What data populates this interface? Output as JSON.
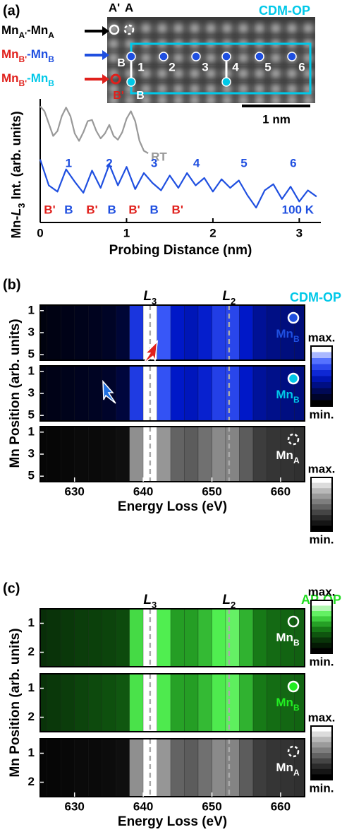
{
  "chart_data": [
    {
      "type": "line",
      "panel": "(a)",
      "title": "CDM-OP",
      "title_color": "#00c8e8",
      "image": {
        "columns": [
          "A'",
          "A"
        ],
        "scale_bar": "1 nm",
        "sites": [
          "1",
          "2",
          "3",
          "4",
          "5",
          "6"
        ],
        "site_marks": [
          "B",
          "B'",
          "B"
        ],
        "rows": [
          {
            "parts": [
              "Mn",
              "A'",
              "-Mn",
              "A"
            ],
            "colors": [
              "#000000",
              "#000000"
            ],
            "arrow": "#000000"
          },
          {
            "parts": [
              "Mn",
              "B'",
              "-Mn",
              "B"
            ],
            "colors": [
              "#e0201c",
              "#1f4fe0"
            ],
            "arrow": "#1f4fe0"
          },
          {
            "parts": [
              "Mn",
              "B'",
              "-Mn",
              "B"
            ],
            "colors": [
              "#e0201c",
              "#00c8e8"
            ],
            "arrow": "#e0201c"
          }
        ]
      },
      "x_label": "Probing Distance (nm)",
      "y_label": [
        "Mn-",
        "L",
        "3",
        " Int. (arb. units)"
      ],
      "xlim": [
        0,
        3.25
      ],
      "xticks": [
        0,
        1,
        2,
        3
      ],
      "ylim": [
        0,
        10
      ],
      "series": [
        {
          "name": "RT",
          "color": "#999999",
          "x": [
            0,
            0.05,
            0.1,
            0.15,
            0.2,
            0.25,
            0.3,
            0.35,
            0.4,
            0.45,
            0.5,
            0.55,
            0.6,
            0.65,
            0.7,
            0.75,
            0.8,
            0.85,
            0.9,
            0.95,
            1.0,
            1.05,
            1.1,
            1.15,
            1.2,
            1.25
          ],
          "values": [
            9.4,
            9.0,
            8.0,
            7.0,
            7.4,
            8.6,
            9.3,
            8.6,
            7.2,
            6.6,
            7.3,
            8.2,
            8.3,
            7.4,
            6.8,
            7.2,
            7.9,
            7.0,
            6.7,
            7.3,
            8.4,
            9.0,
            8.2,
            6.6,
            5.8,
            5.6
          ]
        },
        {
          "name": "100 K",
          "color": "#1f4fe0",
          "x": [
            0,
            0.1,
            0.2,
            0.3,
            0.4,
            0.5,
            0.6,
            0.7,
            0.8,
            0.9,
            1.0,
            1.1,
            1.2,
            1.3,
            1.4,
            1.5,
            1.6,
            1.7,
            1.8,
            1.9,
            2.0,
            2.1,
            2.2,
            2.3,
            2.4,
            2.5,
            2.6,
            2.7,
            2.8,
            2.9,
            3.0,
            3.1,
            3.2
          ],
          "values": [
            5.1,
            3.0,
            2.5,
            4.3,
            3.3,
            2.4,
            4.2,
            2.8,
            4.7,
            3.0,
            4.5,
            2.7,
            4.0,
            3.2,
            2.6,
            3.8,
            2.8,
            4.0,
            3.0,
            3.6,
            2.5,
            3.5,
            2.8,
            3.4,
            2.2,
            1.2,
            2.6,
            3.1,
            1.9,
            2.9,
            1.7,
            2.6,
            2.1
          ]
        }
      ],
      "peak_labels": [
        {
          "text": "1",
          "x": 0.33
        },
        {
          "text": "2",
          "x": 0.8
        },
        {
          "text": "3",
          "x": 1.32
        },
        {
          "text": "4",
          "x": 1.81
        },
        {
          "text": "5",
          "x": 2.36
        },
        {
          "text": "6",
          "x": 2.93
        }
      ],
      "site_labels": [
        {
          "text": "B'",
          "x": 0.11,
          "color": "#e0201c"
        },
        {
          "text": "B",
          "x": 0.33,
          "color": "#1f4fe0"
        },
        {
          "text": "B'",
          "x": 0.6,
          "color": "#e0201c"
        },
        {
          "text": "B",
          "x": 0.83,
          "color": "#1f4fe0"
        },
        {
          "text": "B'",
          "x": 1.09,
          "color": "#e0201c"
        },
        {
          "text": "B",
          "x": 1.32,
          "color": "#1f4fe0"
        },
        {
          "text": "B'",
          "x": 1.59,
          "color": "#e0201c"
        }
      ]
    },
    {
      "type": "heatmap",
      "panel": "(b)",
      "title": "CDM-OP",
      "title_color": "#00c8e8",
      "edges": [
        {
          "label": [
            "L",
            "3"
          ],
          "x": 641
        },
        {
          "label": [
            "L",
            "2"
          ],
          "x": 652.5
        }
      ],
      "x_label": "Energy Loss (eV)",
      "y_label": "Mn Position (arb. units)",
      "xlim": [
        625,
        663.5
      ],
      "xticks": [
        630,
        640,
        650,
        660
      ],
      "ylim": [
        0.5,
        5.5
      ],
      "yticks": [
        1,
        3,
        5
      ],
      "energy": [
        625,
        627,
        629,
        631,
        633,
        635,
        637,
        639,
        641,
        643,
        645,
        647,
        649,
        651,
        653,
        655,
        657,
        659,
        661,
        663
      ],
      "colorbars": [
        {
          "max": "max.",
          "min": "min.",
          "colormap": [
            "#000000",
            "#000a60",
            "#0018c8",
            "#4060ff",
            "#ffffff"
          ]
        },
        {
          "max": "max.",
          "min": "min.",
          "colormap": [
            "#000000",
            "#303030",
            "#707070",
            "#b0b0b0",
            "#ffffff"
          ]
        }
      ],
      "maps": [
        {
          "label": [
            "Mn",
            "B"
          ],
          "label_color": "#1f4fe0",
          "marker_fill": "#1f4fe0",
          "marker_dashed": false,
          "colorbar": 0,
          "intensity": [
            0.04,
            0.05,
            0.06,
            0.07,
            0.08,
            0.1,
            0.14,
            0.6,
            1.0,
            0.72,
            0.5,
            0.46,
            0.52,
            0.63,
            0.66,
            0.5,
            0.38,
            0.34,
            0.32,
            0.31
          ]
        },
        {
          "label": [
            "Mn",
            "B"
          ],
          "label_color": "#00c8e8",
          "marker_fill": "#00c8e8",
          "marker_dashed": false,
          "colorbar": 0,
          "intensity": [
            0.05,
            0.06,
            0.07,
            0.08,
            0.09,
            0.11,
            0.16,
            0.62,
            1.0,
            0.7,
            0.5,
            0.47,
            0.53,
            0.64,
            0.66,
            0.5,
            0.39,
            0.35,
            0.33,
            0.32
          ]
        },
        {
          "label": [
            "Mn",
            "A"
          ],
          "label_color": "#ffffff",
          "marker_fill": "none",
          "marker_dashed": true,
          "colorbar": 1,
          "intensity": [
            0.03,
            0.03,
            0.04,
            0.05,
            0.05,
            0.06,
            0.08,
            0.62,
            1.0,
            0.65,
            0.45,
            0.42,
            0.5,
            0.6,
            0.58,
            0.42,
            0.3,
            0.27,
            0.26,
            0.25
          ]
        }
      ]
    },
    {
      "type": "heatmap",
      "panel": "(c)",
      "title": "AP-OP",
      "title_color": "#22dd22",
      "edges": [
        {
          "label": [
            "L",
            "3"
          ],
          "x": 641
        },
        {
          "label": [
            "L",
            "2"
          ],
          "x": 652.5
        }
      ],
      "x_label": "Energy Loss (eV)",
      "y_label": "Mn Position (arb. units)",
      "xlim": [
        625,
        663.5
      ],
      "xticks": [
        630,
        640,
        650,
        660
      ],
      "ylim": [
        0.5,
        2.5
      ],
      "yticks": [
        1,
        2
      ],
      "energy": [
        625,
        627,
        629,
        631,
        633,
        635,
        637,
        639,
        641,
        643,
        645,
        647,
        649,
        651,
        653,
        655,
        657,
        659,
        661,
        663
      ],
      "colorbars": [
        {
          "max": "max.",
          "min": "min.",
          "colormap": [
            "#000000",
            "#0a3a0a",
            "#1a8a1a",
            "#50ee50",
            "#ffffff"
          ]
        },
        {
          "max": "max.",
          "min": "min.",
          "colormap": [
            "#000000",
            "#303030",
            "#707070",
            "#b0b0b0",
            "#ffffff"
          ]
        }
      ],
      "maps": [
        {
          "label": [
            "Mn",
            "B"
          ],
          "label_color": "#ffffff",
          "marker_fill": "none",
          "marker_dashed": false,
          "colorbar": 0,
          "intensity": [
            0.2,
            0.22,
            0.24,
            0.26,
            0.27,
            0.28,
            0.3,
            0.7,
            1.0,
            0.75,
            0.55,
            0.55,
            0.62,
            0.75,
            0.78,
            0.6,
            0.45,
            0.4,
            0.38,
            0.37
          ]
        },
        {
          "label": [
            "Mn",
            "B"
          ],
          "label_color": "#22ee22",
          "marker_fill": "#22ee22",
          "marker_dashed": false,
          "colorbar": 0,
          "intensity": [
            0.22,
            0.24,
            0.26,
            0.28,
            0.3,
            0.32,
            0.34,
            0.72,
            1.0,
            0.74,
            0.56,
            0.55,
            0.62,
            0.74,
            0.77,
            0.6,
            0.45,
            0.41,
            0.39,
            0.38
          ]
        },
        {
          "label": [
            "Mn",
            "A"
          ],
          "label_color": "#ffffff",
          "marker_fill": "none",
          "marker_dashed": true,
          "colorbar": 1,
          "intensity": [
            0.03,
            0.03,
            0.04,
            0.05,
            0.05,
            0.06,
            0.08,
            0.62,
            1.0,
            0.65,
            0.45,
            0.42,
            0.5,
            0.6,
            0.58,
            0.42,
            0.3,
            0.27,
            0.26,
            0.25
          ]
        }
      ]
    }
  ]
}
